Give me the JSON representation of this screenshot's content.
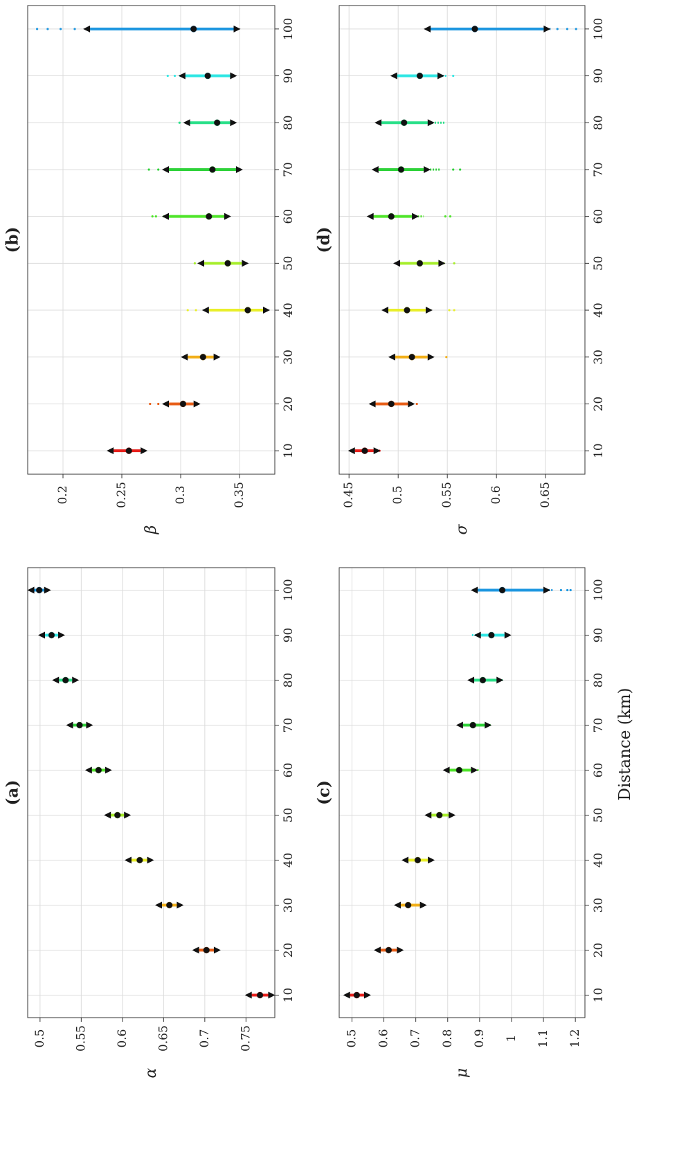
{
  "figure": {
    "xlabel": "Distance (km)"
  },
  "colors": {
    "10": "#e8201c",
    "20": "#e8601a",
    "30": "#f2b01b",
    "40": "#e9ef2a",
    "50": "#a6ee2a",
    "60": "#4fe52a",
    "70": "#2fd23a",
    "80": "#2be08a",
    "90": "#30e7e4",
    "100": "#1e97e0"
  },
  "chart_data": [
    {
      "id": "a",
      "type": "scatter",
      "title": "(a)",
      "ylabel": "α",
      "xticks": [
        10,
        20,
        30,
        40,
        50,
        60,
        70,
        80,
        90,
        100
      ],
      "yticks": [
        0.75,
        0.7,
        0.65,
        0.6,
        0.55,
        0.5
      ],
      "ylim": [
        0.485,
        0.785
      ],
      "grid": true,
      "x": [
        10,
        20,
        30,
        40,
        50,
        60,
        70,
        80,
        90,
        100
      ],
      "median": [
        0.767,
        0.702,
        0.657,
        0.621,
        0.594,
        0.571,
        0.548,
        0.531,
        0.514,
        0.499
      ],
      "ci_low": [
        0.757,
        0.693,
        0.648,
        0.611,
        0.586,
        0.563,
        0.54,
        0.523,
        0.506,
        0.493
      ],
      "ci_high": [
        0.777,
        0.711,
        0.666,
        0.63,
        0.602,
        0.579,
        0.556,
        0.539,
        0.522,
        0.505
      ],
      "spread_low": [
        0.757,
        0.693,
        0.648,
        0.611,
        0.586,
        0.563,
        0.54,
        0.523,
        0.506,
        0.493
      ],
      "spread_high": [
        0.777,
        0.711,
        0.666,
        0.63,
        0.602,
        0.579,
        0.556,
        0.539,
        0.522,
        0.505
      ],
      "outliers": [
        [],
        [],
        [],
        [],
        [],
        [],
        [],
        [],
        [],
        []
      ]
    },
    {
      "id": "b",
      "type": "scatter",
      "title": "(b)",
      "ylabel": "β",
      "xticks": [
        10,
        20,
        30,
        40,
        50,
        60,
        70,
        80,
        90,
        100
      ],
      "yticks": [
        0.35,
        0.3,
        0.25,
        0.2
      ],
      "ylim": [
        0.17,
        0.38
      ],
      "grid": true,
      "x": [
        10,
        20,
        30,
        40,
        50,
        60,
        70,
        80,
        90,
        100
      ],
      "median": [
        0.256,
        0.302,
        0.319,
        0.357,
        0.34,
        0.324,
        0.327,
        0.331,
        0.323,
        0.311
      ],
      "ci_low": [
        0.243,
        0.29,
        0.306,
        0.324,
        0.32,
        0.29,
        0.29,
        0.308,
        0.304,
        0.223
      ],
      "ci_high": [
        0.266,
        0.311,
        0.328,
        0.37,
        0.352,
        0.337,
        0.347,
        0.342,
        0.342,
        0.345
      ],
      "spread_low": [
        0.241,
        0.286,
        0.303,
        0.322,
        0.316,
        0.285,
        0.287,
        0.305,
        0.299,
        0.221
      ],
      "spread_high": [
        0.266,
        0.311,
        0.328,
        0.371,
        0.352,
        0.338,
        0.348,
        0.343,
        0.343,
        0.347
      ],
      "outliers": [
        [],
        [
          0.281,
          0.274
        ],
        [],
        [
          0.313,
          0.306
        ],
        [
          0.312
        ],
        [
          0.279,
          0.276
        ],
        [
          0.281,
          0.273
        ],
        [
          0.299
        ],
        [
          0.295,
          0.289
        ],
        [
          0.21,
          0.198,
          0.187,
          0.178
        ]
      ]
    },
    {
      "id": "c",
      "type": "scatter",
      "title": "(c)",
      "ylabel": "μ",
      "xticks": [
        10,
        20,
        30,
        40,
        50,
        60,
        70,
        80,
        90,
        100
      ],
      "yticks": [
        1.2,
        1.1,
        1,
        0.9,
        0.8,
        0.7,
        0.6,
        0.5
      ],
      "ylim": [
        0.46,
        1.23
      ],
      "grid": true,
      "x": [
        10,
        20,
        30,
        40,
        50,
        60,
        70,
        80,
        90,
        100
      ],
      "median": [
        0.515,
        0.615,
        0.676,
        0.706,
        0.774,
        0.836,
        0.879,
        0.91,
        0.937,
        0.971
      ],
      "ci_low": [
        0.494,
        0.59,
        0.653,
        0.677,
        0.749,
        0.806,
        0.848,
        0.883,
        0.904,
        0.894
      ],
      "ci_high": [
        0.538,
        0.641,
        0.713,
        0.738,
        0.803,
        0.873,
        0.916,
        0.953,
        0.978,
        1.1
      ],
      "spread_low": [
        0.492,
        0.586,
        0.649,
        0.673,
        0.745,
        0.797,
        0.843,
        0.874,
        0.876,
        0.89
      ],
      "spread_high": [
        0.544,
        0.652,
        0.718,
        0.752,
        0.81,
        0.898,
        0.936,
        0.972,
        0.988,
        1.13
      ],
      "outliers": [
        [],
        [],
        [],
        [],
        [],
        [],
        [],
        [],
        [],
        [
          1.155,
          1.175,
          1.185
        ]
      ]
    },
    {
      "id": "d",
      "type": "scatter",
      "title": "(d)",
      "ylabel": "σ",
      "xticks": [
        10,
        20,
        30,
        40,
        50,
        60,
        70,
        80,
        90,
        100
      ],
      "yticks": [
        0.65,
        0.6,
        0.55,
        0.5,
        0.45
      ],
      "ylim": [
        0.44,
        0.69
      ],
      "grid": true,
      "x": [
        10,
        20,
        30,
        40,
        50,
        60,
        70,
        80,
        90,
        100
      ],
      "median": [
        0.466,
        0.493,
        0.514,
        0.509,
        0.522,
        0.493,
        0.503,
        0.506,
        0.522,
        0.578
      ],
      "ci_low": [
        0.456,
        0.477,
        0.497,
        0.49,
        0.502,
        0.475,
        0.48,
        0.483,
        0.499,
        0.533
      ],
      "ci_high": [
        0.475,
        0.51,
        0.53,
        0.528,
        0.541,
        0.514,
        0.526,
        0.53,
        0.54,
        0.648
      ],
      "spread_low": [
        0.454,
        0.473,
        0.494,
        0.486,
        0.498,
        0.472,
        0.476,
        0.478,
        0.494,
        0.53
      ],
      "spread_high": [
        0.478,
        0.514,
        0.535,
        0.534,
        0.548,
        0.526,
        0.543,
        0.548,
        0.55,
        0.655
      ],
      "outliers": [
        [
          0.481
        ],
        [
          0.519
        ],
        [
          0.549
        ],
        [
          0.552,
          0.557
        ],
        [
          0.557
        ],
        [
          0.548,
          0.553
        ],
        [
          0.556,
          0.563
        ],
        [],
        [
          0.556
        ],
        [
          0.662,
          0.672,
          0.681
        ]
      ]
    }
  ]
}
